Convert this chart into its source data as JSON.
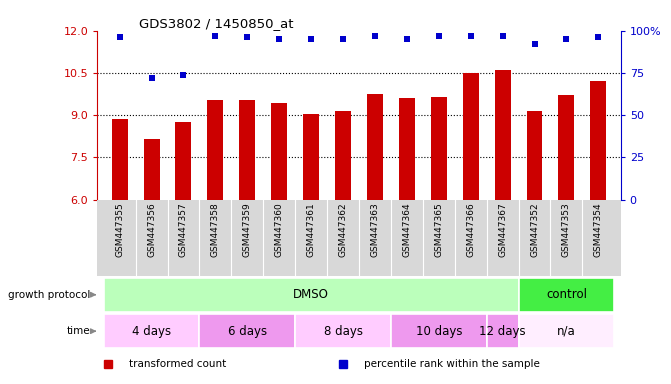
{
  "title": "GDS3802 / 1450850_at",
  "samples": [
    "GSM447355",
    "GSM447356",
    "GSM447357",
    "GSM447358",
    "GSM447359",
    "GSM447360",
    "GSM447361",
    "GSM447362",
    "GSM447363",
    "GSM447364",
    "GSM447365",
    "GSM447366",
    "GSM447367",
    "GSM447352",
    "GSM447353",
    "GSM447354"
  ],
  "transformed_count": [
    8.85,
    8.15,
    8.75,
    9.55,
    9.55,
    9.45,
    9.05,
    9.15,
    9.75,
    9.6,
    9.65,
    10.5,
    10.6,
    9.15,
    9.7,
    10.2
  ],
  "percentile_rank": [
    96,
    72,
    74,
    97,
    96,
    95,
    95,
    95,
    97,
    95,
    97,
    97,
    97,
    92,
    95,
    96
  ],
  "bar_color": "#cc0000",
  "dot_color": "#0000cc",
  "ylim_left": [
    6,
    12
  ],
  "ylim_right": [
    0,
    100
  ],
  "yticks_left": [
    6,
    7.5,
    9,
    10.5,
    12
  ],
  "yticks_right": [
    0,
    25,
    50,
    75,
    100
  ],
  "protocol_groups": [
    {
      "label": "DMSO",
      "start": 0,
      "end": 12,
      "color": "#bbffbb"
    },
    {
      "label": "control",
      "start": 13,
      "end": 15,
      "color": "#44ee44"
    }
  ],
  "time_groups": [
    {
      "label": "4 days",
      "start": 0,
      "end": 2,
      "color": "#ffccff"
    },
    {
      "label": "6 days",
      "start": 3,
      "end": 5,
      "color": "#ee99ee"
    },
    {
      "label": "8 days",
      "start": 6,
      "end": 8,
      "color": "#ffccff"
    },
    {
      "label": "10 days",
      "start": 9,
      "end": 11,
      "color": "#ee99ee"
    },
    {
      "label": "12 days",
      "start": 12,
      "end": 12,
      "color": "#ee99ee"
    },
    {
      "label": "n/a",
      "start": 13,
      "end": 15,
      "color": "#ffeeff"
    }
  ],
  "legend_items": [
    {
      "label": "transformed count",
      "color": "#cc0000"
    },
    {
      "label": "percentile rank within the sample",
      "color": "#0000cc"
    }
  ],
  "tick_label_color_left": "#cc0000",
  "tick_label_color_right": "#0000cc",
  "sample_bg_color": "#d8d8d8",
  "sample_divider_color": "#ffffff"
}
